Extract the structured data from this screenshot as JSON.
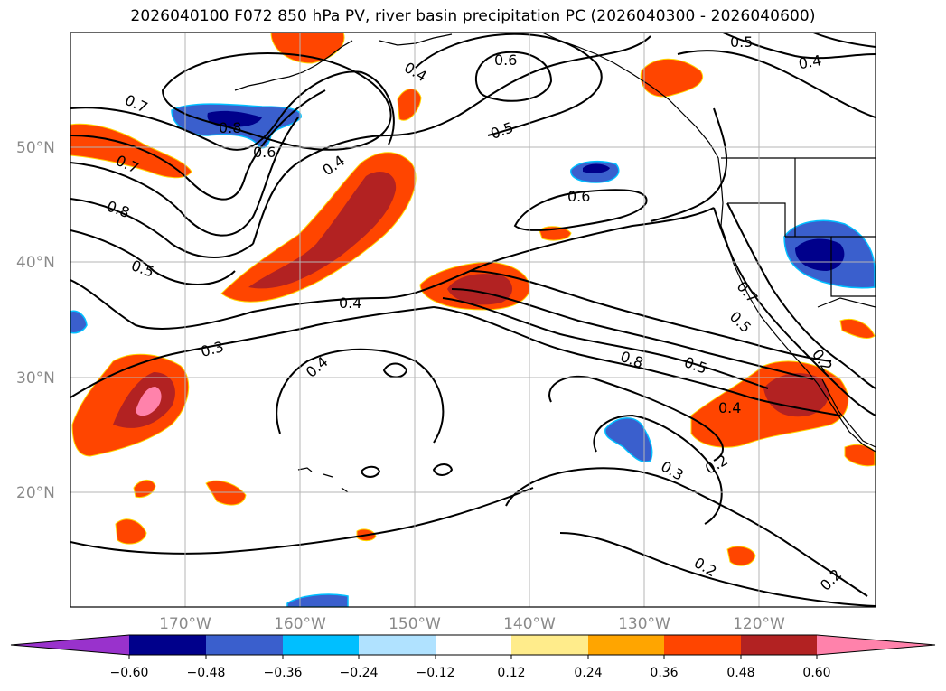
{
  "title": "2026040100 F072 850 hPa PV, river basin precipitation PC (2026040300 - 2026040600)",
  "map": {
    "lat_labels": [
      "50°N",
      "40°N",
      "30°N",
      "20°N"
    ],
    "lon_labels": [
      "170°W",
      "160°W",
      "150°W",
      "140°W",
      "130°W",
      "120°W"
    ],
    "contour_labels": [
      "0.7",
      "0.8",
      "0.6",
      "0.4",
      "0.6",
      "0.5",
      "0.5",
      "0.4",
      "0.7",
      "0.8",
      "0.5",
      "0.4",
      "0.4",
      "0.3",
      "0.4",
      "0.6",
      "0.8",
      "0.5",
      "0.4",
      "0.7",
      "0.5",
      "0.2",
      "0.3",
      "0.2",
      "0.2",
      "0.2"
    ]
  },
  "colorbar": {
    "ticks": [
      "−0.60",
      "−0.48",
      "−0.36",
      "−0.24",
      "−0.12",
      "0.12",
      "0.24",
      "0.36",
      "0.48",
      "0.60"
    ],
    "colors": [
      "#9932cc",
      "#00008b",
      "#3a5fcd",
      "#00bfff",
      "#b0e2ff",
      "#ffffff",
      "#ffec8b",
      "#ffa500",
      "#ff4500",
      "#b22222",
      "#ff82ab"
    ]
  }
}
